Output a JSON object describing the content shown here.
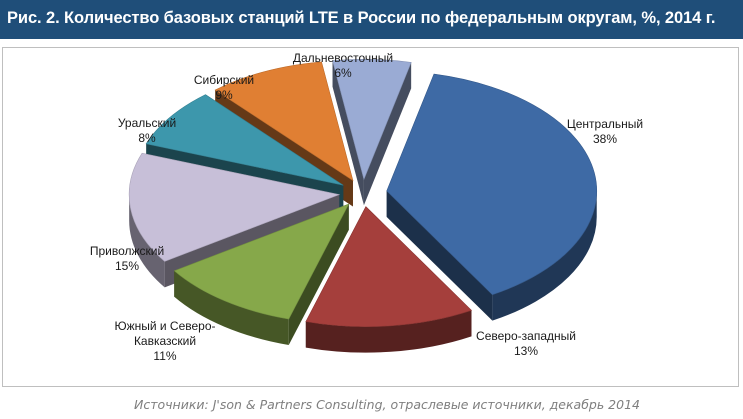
{
  "header": {
    "title": "Рис. 2. Количество базовых станций LTE в России по федеральным округам, %, 2014 г."
  },
  "source": "Источники: J'son & Partners Consulting, отраслевые источники, декабрь 2014",
  "colors": {
    "header_bg": "#1f4e79",
    "central": "#3e6aa5",
    "northwest": "#a53f3c",
    "south": "#86a84a",
    "volga": "#c7bfd8",
    "ural": "#3d97ac",
    "siberia": "#e07f33",
    "fareast": "#9aabd4"
  },
  "chart_data": {
    "type": "pie",
    "style": "3d-exploded",
    "categories": [
      "Центральный",
      "Северо-западный",
      "Южный и Северо-Кавказский",
      "Приволжский",
      "Уральский",
      "Сибирский",
      "Дальневосточный"
    ],
    "values": [
      38,
      13,
      11,
      15,
      8,
      9,
      6
    ],
    "unit": "%",
    "labels": [
      {
        "lines": [
          "Центральный",
          "38%"
        ]
      },
      {
        "lines": [
          "Северо-западный",
          "13%"
        ]
      },
      {
        "lines": [
          "Южный и Северо-",
          "Кавказский",
          "11%"
        ]
      },
      {
        "lines": [
          "Приволжский",
          "15%"
        ]
      },
      {
        "lines": [
          "Уральский",
          "8%"
        ]
      },
      {
        "lines": [
          "Сибирский",
          "9%"
        ]
      },
      {
        "lines": [
          "Дальневосточный",
          "6%"
        ]
      }
    ]
  }
}
